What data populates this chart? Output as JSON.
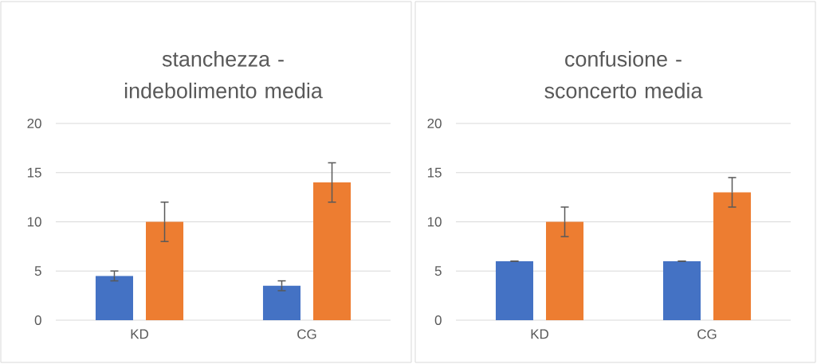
{
  "chart_data": [
    {
      "type": "bar",
      "title": "stanchezza - indebolimento media",
      "categories": [
        "KD",
        "CG"
      ],
      "series": [
        {
          "color": "#4472c4",
          "values": [
            4.5,
            3.5
          ],
          "errors": [
            0.5,
            0.5
          ]
        },
        {
          "color": "#ed7d31",
          "values": [
            10,
            14
          ],
          "errors": [
            2,
            2
          ]
        }
      ],
      "ylim": [
        0,
        20
      ],
      "yticks": [
        0,
        5,
        10,
        15,
        20
      ],
      "grid": "y"
    },
    {
      "type": "bar",
      "title": "confusione - sconcerto media",
      "categories": [
        "KD",
        "CG"
      ],
      "series": [
        {
          "color": "#4472c4",
          "values": [
            6,
            6
          ],
          "errors": [
            0,
            0
          ]
        },
        {
          "color": "#ed7d31",
          "values": [
            10,
            13
          ],
          "errors": [
            1.5,
            1.5
          ]
        }
      ],
      "ylim": [
        0,
        20
      ],
      "yticks": [
        0,
        5,
        10,
        15,
        20
      ],
      "grid": "y"
    }
  ]
}
